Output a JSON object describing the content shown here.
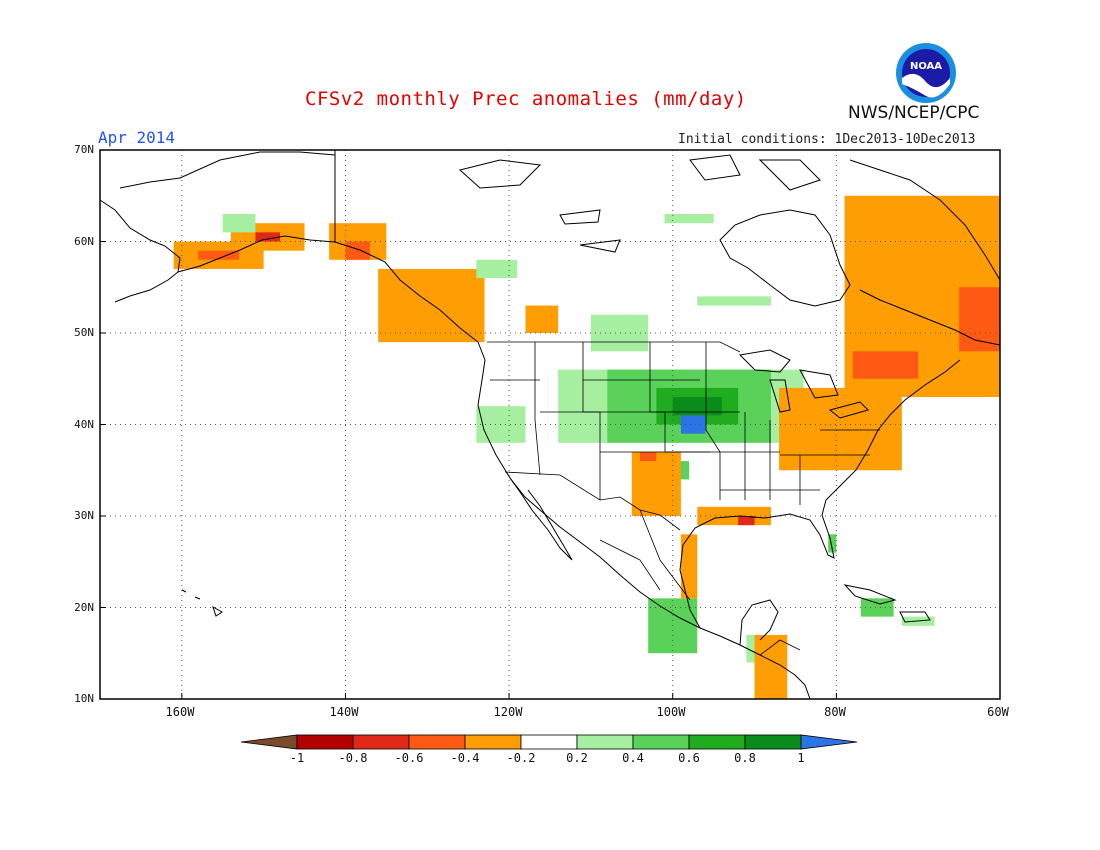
{
  "title": "CFSv2 monthly Prec anomalies (mm/day)",
  "month_label": "Apr 2014",
  "init_conditions": "Initial conditions: 1Dec2013-10Dec2013",
  "agency": "NWS/NCEP/CPC",
  "logo_text": "NOAA",
  "lat_labels": [
    "70N",
    "60N",
    "50N",
    "40N",
    "30N",
    "20N",
    "10N"
  ],
  "lon_labels": [
    "160W",
    "140W",
    "120W",
    "100W",
    "80W",
    "60W"
  ],
  "colorbar": {
    "labels": [
      "-1",
      "-0.8",
      "-0.6",
      "-0.4",
      "-0.2",
      "0.2",
      "0.4",
      "0.6",
      "0.8",
      "1"
    ],
    "colors": {
      "lt_minus1": "#7a4a2a",
      "m1_m08": "#b30000",
      "m08_m06": "#e02818",
      "m06_m04": "#ff5a14",
      "m04_m02": "#ff9d05",
      "m02_p02": "#ffffff",
      "p02_p04": "#a6eea0",
      "p04_p06": "#5ad25a",
      "p06_p08": "#1fad1f",
      "p08_p1": "#0a8c1a",
      "gt_p1": "#2b74e6"
    }
  },
  "map_extent": {
    "lon_min": -170,
    "lon_max": -60,
    "lat_min": 10,
    "lat_max": 70
  },
  "anomaly_regions": [
    {
      "level": "m04_m02",
      "lat": [
        57,
        60
      ],
      "lon": [
        -161,
        -150
      ]
    },
    {
      "level": "m06_m04",
      "lat": [
        58,
        59
      ],
      "lon": [
        -158,
        -153
      ]
    },
    {
      "level": "m04_m02",
      "lat": [
        59,
        62
      ],
      "lon": [
        -154,
        -145
      ]
    },
    {
      "level": "m08_m06",
      "lat": [
        60,
        61
      ],
      "lon": [
        -151,
        -148
      ]
    },
    {
      "level": "m04_m02",
      "lat": [
        58,
        62
      ],
      "lon": [
        -142,
        -135
      ]
    },
    {
      "level": "m06_m04",
      "lat": [
        58,
        60
      ],
      "lon": [
        -140,
        -137
      ]
    },
    {
      "level": "m04_m02",
      "lat": [
        49,
        57
      ],
      "lon": [
        -136,
        -123
      ]
    },
    {
      "level": "m04_m02",
      "lat": [
        50,
        53
      ],
      "lon": [
        -118,
        -114
      ]
    },
    {
      "level": "p02_p04",
      "lat": [
        61,
        63
      ],
      "lon": [
        -155,
        -151
      ]
    },
    {
      "level": "p02_p04",
      "lat": [
        56,
        58
      ],
      "lon": [
        -124,
        -119
      ]
    },
    {
      "level": "p02_p04",
      "lat": [
        62,
        63
      ],
      "lon": [
        -101,
        -95
      ]
    },
    {
      "level": "p02_p04",
      "lat": [
        53,
        54
      ],
      "lon": [
        -97,
        -88
      ]
    },
    {
      "level": "p02_p04",
      "lat": [
        48,
        52
      ],
      "lon": [
        -110,
        -103
      ]
    },
    {
      "level": "p02_p04",
      "lat": [
        38,
        42
      ],
      "lon": [
        -124,
        -118
      ]
    },
    {
      "level": "p02_p04",
      "lat": [
        38,
        46
      ],
      "lon": [
        -114,
        -84
      ]
    },
    {
      "level": "p04_p06",
      "lat": [
        38,
        46
      ],
      "lon": [
        -108,
        -88
      ]
    },
    {
      "level": "p06_p08",
      "lat": [
        40,
        44
      ],
      "lon": [
        -102,
        -92
      ]
    },
    {
      "level": "p08_p1",
      "lat": [
        41,
        43
      ],
      "lon": [
        -100,
        -94
      ]
    },
    {
      "level": "gt_p1",
      "lat": [
        39,
        41
      ],
      "lon": [
        -99,
        -96
      ]
    },
    {
      "level": "p04_p06",
      "lat": [
        34,
        36
      ],
      "lon": [
        -101,
        -98
      ]
    },
    {
      "level": "p04_p06",
      "lat": [
        26,
        28
      ],
      "lon": [
        -81,
        -80
      ]
    },
    {
      "level": "p04_p06",
      "lat": [
        15,
        21
      ],
      "lon": [
        -103,
        -97
      ]
    },
    {
      "level": "p02_p04",
      "lat": [
        14,
        17
      ],
      "lon": [
        -91,
        -87
      ]
    },
    {
      "level": "p04_p06",
      "lat": [
        19,
        21
      ],
      "lon": [
        -77,
        -73
      ]
    },
    {
      "level": "p02_p04",
      "lat": [
        18,
        19
      ],
      "lon": [
        -72,
        -68
      ]
    },
    {
      "level": "m04_m02",
      "lat": [
        43,
        65
      ],
      "lon": [
        -79,
        -60
      ]
    },
    {
      "level": "m06_m04",
      "lat": [
        48,
        55
      ],
      "lon": [
        -65,
        -60
      ]
    },
    {
      "level": "m06_m04",
      "lat": [
        45,
        48
      ],
      "lon": [
        -78,
        -70
      ]
    },
    {
      "level": "m04_m02",
      "lat": [
        35,
        44
      ],
      "lon": [
        -87,
        -72
      ]
    },
    {
      "level": "m04_m02",
      "lat": [
        30,
        37
      ],
      "lon": [
        -105,
        -99
      ]
    },
    {
      "level": "m06_m04",
      "lat": [
        36,
        37
      ],
      "lon": [
        -104,
        -102
      ]
    },
    {
      "level": "m04_m02",
      "lat": [
        29,
        31
      ],
      "lon": [
        -97,
        -88
      ]
    },
    {
      "level": "m08_m06",
      "lat": [
        29,
        30
      ],
      "lon": [
        -92,
        -90
      ]
    },
    {
      "level": "m04_m02",
      "lat": [
        21,
        28
      ],
      "lon": [
        -99,
        -97
      ]
    },
    {
      "level": "m04_m02",
      "lat": [
        10,
        17
      ],
      "lon": [
        -90,
        -86
      ]
    },
    {
      "level": "m04_m02",
      "lat": [
        63,
        64
      ],
      "lon": [
        -65,
        -63
      ]
    }
  ]
}
